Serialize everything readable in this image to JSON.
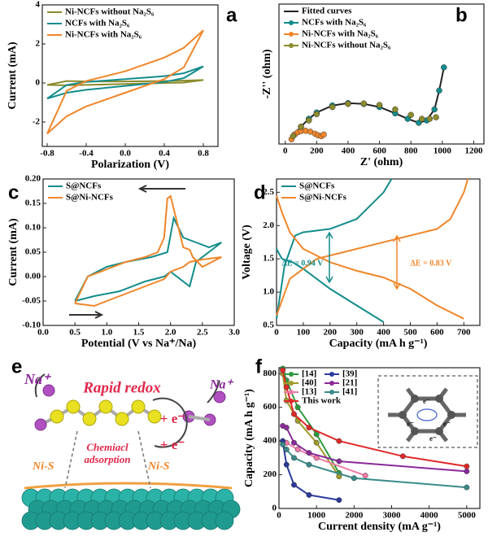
{
  "chart_data": [
    {
      "type": "line",
      "panel": "a",
      "xlabel": "Polarization (V)",
      "ylabel": "Current (mA)",
      "xlim": [
        -0.85,
        0.95
      ],
      "ylim": [
        -3.25,
        4
      ],
      "xticks": [
        -0.8,
        -0.4,
        {
          "value": 0,
          "label": "0.0"
        },
        0.4,
        0.8
      ],
      "yticks": [
        -2,
        0,
        2,
        4
      ],
      "legend": "upper left",
      "series": [
        {
          "name": "Ni-NCFs without Na₂S₆",
          "color": "#8b8b2c",
          "x": [
            -0.8,
            -0.6,
            -0.4,
            0,
            0.4,
            0.6,
            0.8,
            0.6,
            0.4,
            0,
            -0.4,
            -0.6,
            -0.8
          ],
          "values": [
            -0.1,
            -0.12,
            -0.1,
            -0.05,
            0,
            0.02,
            0.15,
            0.12,
            0.1,
            0.08,
            0.08,
            0.1,
            -0.1
          ]
        },
        {
          "name": "NCFs with Na₂S₆",
          "color": "#138c8c",
          "x": [
            -0.8,
            -0.6,
            -0.4,
            0,
            0.4,
            0.6,
            0.8,
            0.6,
            0.4,
            0,
            -0.4,
            -0.6,
            -0.8
          ],
          "values": [
            -0.8,
            -0.5,
            -0.35,
            -0.15,
            0.05,
            0.25,
            0.85,
            0.5,
            0.35,
            0.2,
            0.05,
            -0.1,
            -0.8
          ]
        },
        {
          "name": "Ni-NCFs with Na₂S₆",
          "color": "#f0862a",
          "x": [
            -0.8,
            -0.6,
            -0.4,
            0,
            0.4,
            0.6,
            0.8,
            0.6,
            0.4,
            0,
            -0.4,
            -0.6,
            -0.8
          ],
          "values": [
            -2.6,
            -1.7,
            -1.2,
            -0.5,
            0.2,
            0.8,
            2.7,
            1.8,
            1.3,
            0.6,
            0.1,
            -0.4,
            -2.6
          ]
        }
      ]
    },
    {
      "type": "scatter",
      "panel": "b",
      "xlabel": "Z' (ohm)",
      "ylabel": "-Z'' (ohm)",
      "xlim": [
        -40,
        1265
      ],
      "ylim": [
        -20,
        870
      ],
      "xticks": [
        0,
        200,
        400,
        600,
        800,
        1000,
        1200
      ],
      "legend": "upper left",
      "series": [
        {
          "name": "Fitted curves",
          "color": "#222222",
          "style": "line",
          "x": [
            40,
            60,
            80,
            100,
            130,
            160,
            190,
            210,
            230,
            245,
            null,
            60,
            100,
            150,
            200,
            300,
            400,
            500,
            600,
            700,
            780,
            850,
            900,
            950,
            980,
            1010
          ],
          "values": [
            10,
            40,
            55,
            62,
            64,
            58,
            45,
            35,
            30,
            40,
            null,
            40,
            90,
            140,
            180,
            225,
            240,
            235,
            215,
            175,
            140,
            115,
            130,
            200,
            320,
            467
          ]
        },
        {
          "name": "NCFs with Na₂S₆",
          "color": "#138c8c",
          "style": "markers",
          "x": [
            60,
            100,
            150,
            200,
            300,
            400,
            500,
            600,
            700,
            780,
            850,
            900,
            950,
            980,
            1010
          ],
          "values": [
            40,
            90,
            140,
            180,
            225,
            240,
            235,
            215,
            175,
            140,
            115,
            130,
            200,
            320,
            467
          ]
        },
        {
          "name": "Ni-NCFs with Na₂S₆",
          "color": "#f0862a",
          "style": "markers",
          "x": [
            40,
            60,
            80,
            100,
            130,
            160,
            190,
            210,
            230,
            245
          ],
          "values": [
            10,
            40,
            55,
            62,
            64,
            58,
            45,
            35,
            30,
            40
          ]
        },
        {
          "name": "Ni-NCFs without Na₂S₆",
          "color": "#8b8b2c",
          "style": "markers",
          "x": [
            50,
            100,
            150,
            200,
            300,
            400,
            500,
            600,
            700,
            800,
            870,
            920,
            960
          ],
          "values": [
            30,
            90,
            130,
            170,
            215,
            235,
            238,
            228,
            200,
            165,
            140,
            140,
            150
          ]
        }
      ]
    },
    {
      "type": "line",
      "panel": "c",
      "xlabel": "Potential (V vs Na⁺/Na)",
      "ylabel": "Current (mA)",
      "xlim": [
        0,
        3
      ],
      "ylim": [
        -0.1,
        0.2
      ],
      "xticks": [
        {
          "value": 0,
          "label": "0.0"
        },
        0.5,
        {
          "value": 1,
          "label": "1.0"
        },
        1.5,
        {
          "value": 2,
          "label": "2.0"
        },
        2.5,
        {
          "value": 3,
          "label": "3.0"
        }
      ],
      "yticks": [
        {
          "value": -0.1,
          "label": "-0.10"
        },
        {
          "value": -0.05,
          "label": "-0.05"
        },
        {
          "value": 0,
          "label": "0.00"
        },
        {
          "value": 0.05,
          "label": "0.05"
        },
        {
          "value": 0.1,
          "label": "0.10"
        },
        {
          "value": 0.15,
          "label": "0.15"
        },
        {
          "value": 0.2,
          "label": "0.20"
        }
      ],
      "legend": "upper left",
      "series": [
        {
          "name": "S@NCFs",
          "color": "#138c8c",
          "x": [
            0.5,
            0.8,
            1.2,
            1.6,
            1.9,
            2.0,
            2.3,
            2.4,
            2.6,
            2.8,
            2.6,
            2.4,
            2.2,
            2.05,
            1.95,
            1.7,
            1.3,
            1.0,
            0.7,
            0.5
          ],
          "values": [
            -0.05,
            -0.04,
            -0.03,
            -0.01,
            0.0,
            0.01,
            -0.02,
            0.03,
            0.05,
            0.07,
            0.06,
            0.07,
            0.08,
            0.12,
            0.05,
            0.04,
            0.03,
            0.02,
            0.0,
            -0.05
          ]
        },
        {
          "name": "S@Ni-NCFs",
          "color": "#f0862a",
          "x": [
            0.5,
            0.8,
            1.0,
            1.3,
            1.5,
            1.7,
            1.9,
            2.0,
            2.2,
            2.3,
            2.5,
            2.8,
            2.5,
            2.35,
            2.3,
            2.2,
            2.0,
            1.95,
            1.9,
            1.8,
            1.6,
            1.3,
            1.0,
            0.7,
            0.5
          ],
          "values": [
            -0.055,
            -0.06,
            -0.05,
            -0.035,
            -0.025,
            -0.015,
            -0.005,
            0.01,
            0.02,
            0.03,
            0.035,
            0.04,
            0.02,
            0.04,
            0.055,
            0.06,
            0.165,
            0.16,
            0.08,
            0.05,
            0.04,
            0.03,
            0.015,
            0.0,
            -0.055
          ]
        }
      ]
    },
    {
      "type": "line",
      "panel": "d",
      "xlabel": "Capacity (mA h g⁻¹)",
      "ylabel": "Voltage (V)",
      "xlim": [
        0,
        760
      ],
      "ylim": [
        0.5,
        2.7
      ],
      "xticks": [
        0,
        100,
        200,
        300,
        400,
        500,
        600,
        700
      ],
      "yticks": [
        0.5,
        {
          "value": 1,
          "label": "1.0"
        },
        1.5,
        {
          "value": 2,
          "label": "2.0"
        },
        2.5
      ],
      "legend": "upper left",
      "annotations": [
        {
          "text": "ΔE = 0.94 V",
          "color": "#138c8c"
        },
        {
          "text": "ΔE = 0.83 V",
          "color": "#f0862a"
        }
      ],
      "series": [
        {
          "name": "S@NCFs",
          "color": "#138c8c",
          "x": [
            0,
            20,
            60,
            100,
            200,
            300,
            400,
            null,
            0,
            30,
            70,
            100,
            200,
            300,
            400,
            430
          ],
          "values": [
            1.65,
            1.5,
            1.45,
            1.35,
            1.05,
            0.8,
            0.55,
            null,
            0.6,
            1.4,
            1.85,
            1.9,
            1.95,
            2.1,
            2.5,
            2.7
          ]
        },
        {
          "name": "S@Ni-NCFs",
          "color": "#f0862a",
          "x": [
            0,
            20,
            50,
            100,
            200,
            300,
            400,
            500,
            600,
            700,
            null,
            0,
            50,
            150,
            250,
            400,
            500,
            600,
            650,
            700,
            715
          ],
          "values": [
            2.45,
            2.2,
            1.9,
            1.65,
            1.45,
            1.32,
            1.22,
            1.05,
            0.8,
            0.6,
            null,
            0.65,
            1.2,
            1.5,
            1.6,
            1.75,
            1.85,
            1.95,
            2.1,
            2.5,
            2.7
          ]
        }
      ]
    },
    {
      "type": "line",
      "panel": "f",
      "xlabel": "Current density (mA g⁻¹)",
      "ylabel": "Capacity (mA h g⁻¹)",
      "xlim": [
        0,
        5350
      ],
      "ylim": [
        0,
        835
      ],
      "xticks": [
        0,
        1000,
        2000,
        3000,
        4000,
        5000
      ],
      "yticks": [
        0,
        200,
        400,
        600,
        800
      ],
      "legend": "upper left",
      "legend_columns": 2,
      "inset_labels": [
        "e⁻",
        "e⁻",
        "e⁻",
        "e⁻"
      ],
      "series": [
        {
          "name": "[14]",
          "color": "#2e9a3e",
          "style": "line-markers",
          "x": [
            100,
            200,
            500,
            1000,
            1600
          ],
          "values": [
            830,
            760,
            600,
            440,
            210
          ]
        },
        {
          "name": "[40]",
          "color": "#a09a2a",
          "style": "line-markers",
          "x": [
            100,
            200,
            500,
            1000,
            1600
          ],
          "values": [
            800,
            640,
            520,
            390,
            190
          ]
        },
        {
          "name": "[13]",
          "color": "#f07aa8",
          "style": "line-markers",
          "x": [
            100,
            200,
            500,
            1000,
            2300
          ],
          "values": [
            400,
            390,
            350,
            300,
            195
          ]
        },
        {
          "name": "This work",
          "color": "#e02828",
          "style": "line-markers",
          "x": [
            100,
            200,
            400,
            800,
            1600,
            3300,
            5000
          ],
          "values": [
            820,
            720,
            560,
            480,
            400,
            310,
            250
          ]
        },
        {
          "name": "[39]",
          "color": "#2a3a9a",
          "style": "line-markers",
          "x": [
            100,
            200,
            400,
            800,
            1600
          ],
          "values": [
            400,
            260,
            140,
            80,
            50
          ]
        },
        {
          "name": "[21]",
          "color": "#8a2a9a",
          "style": "line-markers",
          "x": [
            100,
            200,
            400,
            800,
            1600,
            5000
          ],
          "values": [
            490,
            480,
            390,
            330,
            280,
            220
          ]
        },
        {
          "name": "[41]",
          "color": "#3a8a8a",
          "style": "line-markers",
          "x": [
            100,
            200,
            400,
            800,
            2000,
            5000
          ],
          "values": [
            380,
            350,
            300,
            260,
            180,
            125
          ]
        }
      ]
    }
  ],
  "illustration": {
    "panel": "e",
    "na_left": "Na⁺",
    "na_right": "Na⁺",
    "title": "Rapid redox",
    "electron_top": "+ e⁻",
    "electron_bottom": "+ e⁻",
    "adsorption": [
      "Chemiacl",
      "adsorption"
    ],
    "nis_left": "Ni-S",
    "nis_right": "Ni-S"
  }
}
